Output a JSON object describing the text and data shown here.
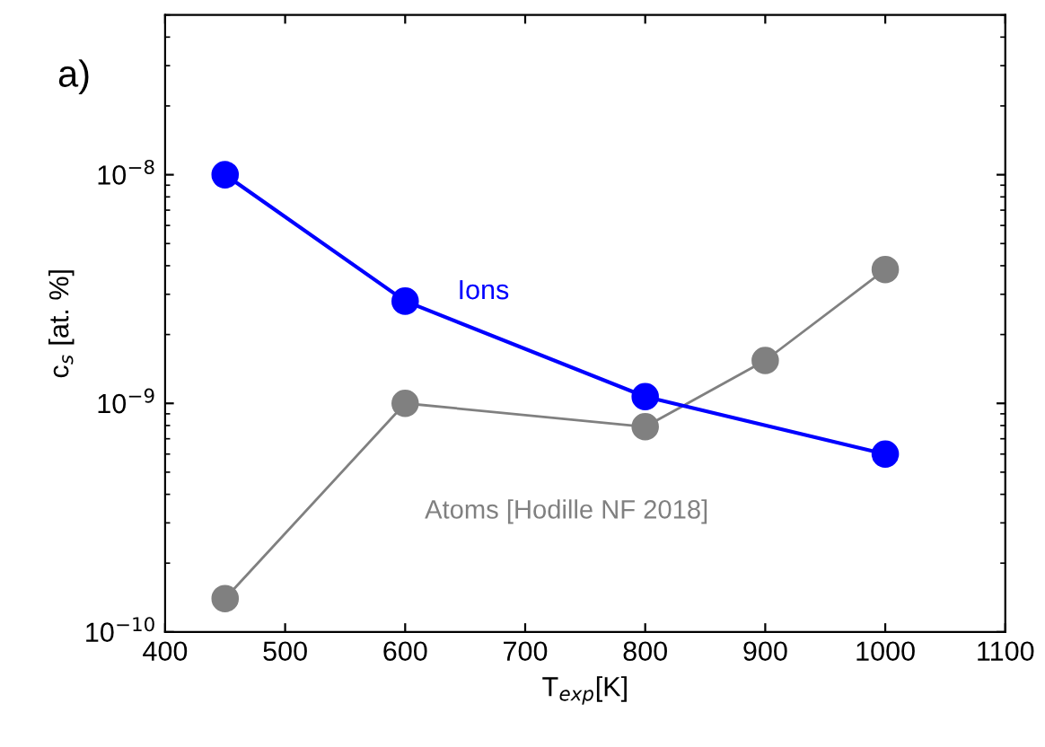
{
  "chart_data": {
    "type": "line",
    "xlabel": "T$_{exp}$[K]",
    "ylabel": "c$_{s}$ [at. %]",
    "annotations": [
      "a)"
    ],
    "series": [
      {
        "name": "Ions",
        "color": "#0000ff",
        "x": [
          450,
          600,
          800,
          1000
        ],
        "values": [
          1e-08,
          2.8e-09,
          1.07e-09,
          6e-10
        ]
      },
      {
        "name": "Atoms [Hodille NF 2018]",
        "color": "#808080",
        "x": [
          450,
          600,
          800,
          900,
          1000
        ],
        "values": [
          1.4e-10,
          1e-09,
          7.9e-10,
          1.54e-09,
          3.85e-09
        ]
      }
    ],
    "log": "y",
    "marker": "circle",
    "line_style": "solid",
    "grid": false,
    "legend": false,
    "xlim": [
      400,
      1100
    ],
    "xticks": [
      400,
      500,
      600,
      700,
      800,
      900,
      1000,
      1100
    ],
    "ylim": [
      1e-10,
      5e-08
    ],
    "yticks": [
      {
        "value": 1e-10,
        "label": "10$^{−10}$"
      },
      {
        "value": 1e-09,
        "label": "10$^{−9}$"
      },
      {
        "value": 1e-08,
        "label": "10$^{−8}$"
      }
    ]
  }
}
